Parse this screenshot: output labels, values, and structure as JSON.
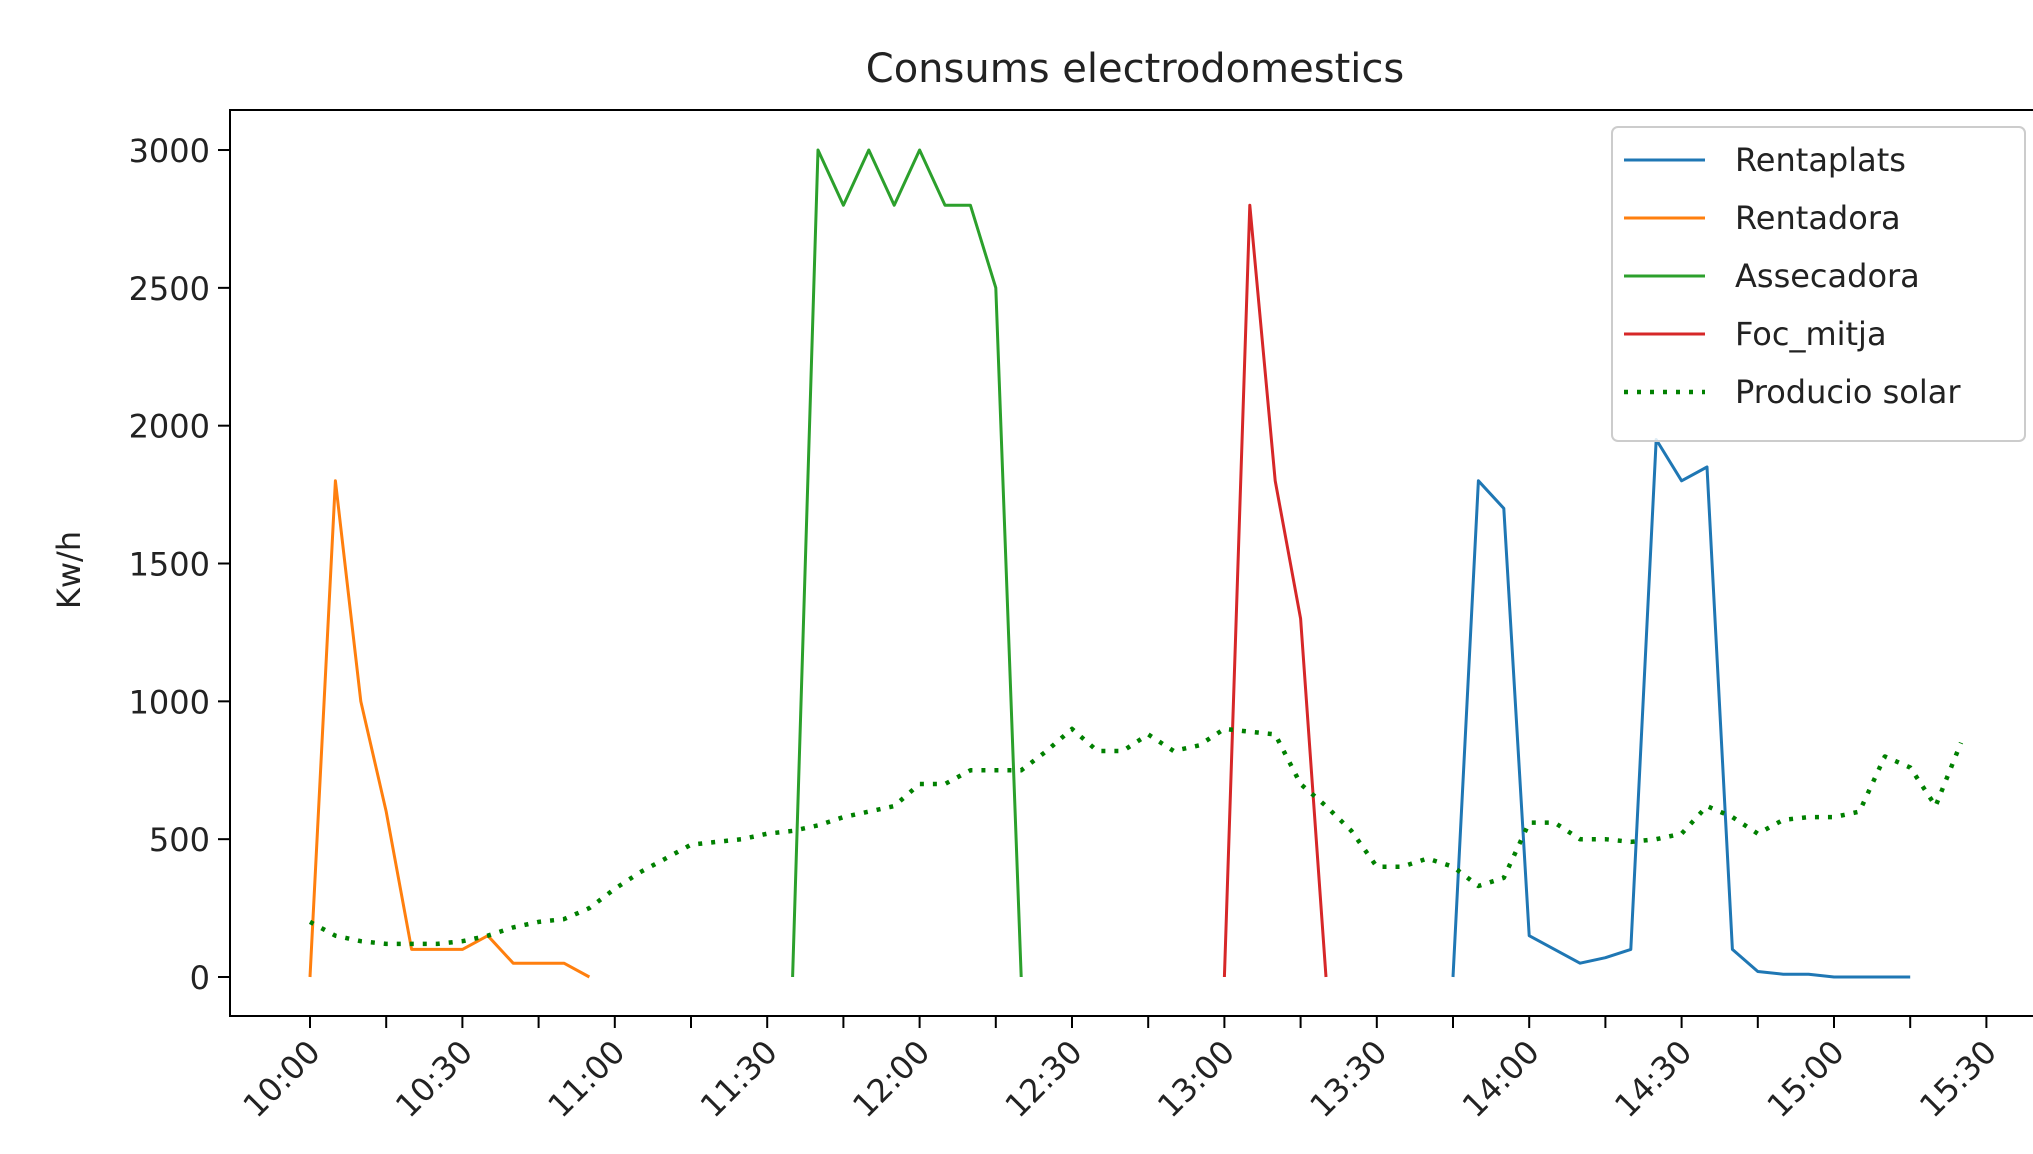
{
  "chart_data": {
    "type": "line",
    "title": "Consums electrodomestics",
    "xlabel": "",
    "ylabel": "Kw/h",
    "ylim": [
      -150,
      3150
    ],
    "yticks": [
      0,
      500,
      1000,
      1500,
      2000,
      2500,
      3000
    ],
    "xticks": [
      "10:00",
      "10:30",
      "11:00",
      "11:30",
      "12:00",
      "12:30",
      "13:00",
      "13:30",
      "14:00",
      "14:30",
      "15:00",
      "15:30"
    ],
    "grid": false,
    "legend_position": "top-right",
    "series": [
      {
        "name": "Rentaplats",
        "color": "#1f77b4",
        "style": "solid",
        "x": [
          "13:45",
          "13:50",
          "13:55",
          "14:00",
          "14:05",
          "14:10",
          "14:15",
          "14:20",
          "14:25",
          "14:30",
          "14:35",
          "14:40",
          "14:45",
          "14:50",
          "14:55",
          "15:00",
          "15:05",
          "15:10",
          "15:15"
        ],
        "y": [
          0,
          1800,
          1700,
          150,
          100,
          50,
          70,
          100,
          1950,
          1800,
          1850,
          100,
          20,
          10,
          10,
          0,
          0,
          0,
          0
        ]
      },
      {
        "name": "Rentadora",
        "color": "#ff7f0e",
        "style": "solid",
        "x": [
          "10:00",
          "10:05",
          "10:10",
          "10:15",
          "10:20",
          "10:25",
          "10:30",
          "10:35",
          "10:40",
          "10:45",
          "10:50",
          "10:55"
        ],
        "y": [
          0,
          1800,
          1000,
          600,
          100,
          100,
          100,
          150,
          50,
          50,
          50,
          0
        ]
      },
      {
        "name": "Assecadora",
        "color": "#2ca02c",
        "style": "solid",
        "x": [
          "11:35",
          "11:40",
          "11:45",
          "11:50",
          "11:55",
          "12:00",
          "12:05",
          "12:10",
          "12:15",
          "12:20"
        ],
        "y": [
          0,
          3000,
          2800,
          3000,
          2800,
          3000,
          2800,
          2800,
          2500,
          0
        ]
      },
      {
        "name": "Foc_mitja",
        "color": "#d62728",
        "style": "solid",
        "x": [
          "13:00",
          "13:05",
          "13:10",
          "13:15",
          "13:20"
        ],
        "y": [
          0,
          2800,
          1800,
          1300,
          0
        ]
      },
      {
        "name": "Producio solar",
        "color": "#008000",
        "style": "dotted",
        "x": [
          "10:00",
          "10:05",
          "10:10",
          "10:15",
          "10:20",
          "10:25",
          "10:30",
          "10:35",
          "10:40",
          "10:45",
          "10:50",
          "10:55",
          "11:00",
          "11:05",
          "11:10",
          "11:15",
          "11:20",
          "11:25",
          "11:30",
          "11:35",
          "11:40",
          "11:45",
          "11:50",
          "11:55",
          "12:00",
          "12:05",
          "12:10",
          "12:15",
          "12:20",
          "12:25",
          "12:30",
          "12:35",
          "12:40",
          "12:45",
          "12:50",
          "12:55",
          "13:00",
          "13:05",
          "13:10",
          "13:15",
          "13:20",
          "13:25",
          "13:30",
          "13:35",
          "13:40",
          "13:45",
          "13:50",
          "13:55",
          "14:00",
          "14:05",
          "14:10",
          "14:15",
          "14:20",
          "14:25",
          "14:30",
          "14:35",
          "14:40",
          "14:45",
          "14:50",
          "14:55",
          "15:00",
          "15:05",
          "15:10",
          "15:15",
          "15:20",
          "15:25"
        ],
        "y": [
          200,
          150,
          130,
          120,
          120,
          120,
          130,
          150,
          180,
          200,
          210,
          250,
          320,
          380,
          430,
          480,
          490,
          500,
          520,
          530,
          550,
          580,
          600,
          620,
          700,
          700,
          750,
          750,
          750,
          820,
          900,
          820,
          820,
          880,
          820,
          840,
          900,
          890,
          880,
          700,
          620,
          530,
          400,
          400,
          430,
          400,
          330,
          360,
          560,
          560,
          500,
          500,
          490,
          500,
          520,
          620,
          580,
          520,
          570,
          580,
          580,
          600,
          800,
          760,
          620,
          850
        ]
      }
    ]
  }
}
